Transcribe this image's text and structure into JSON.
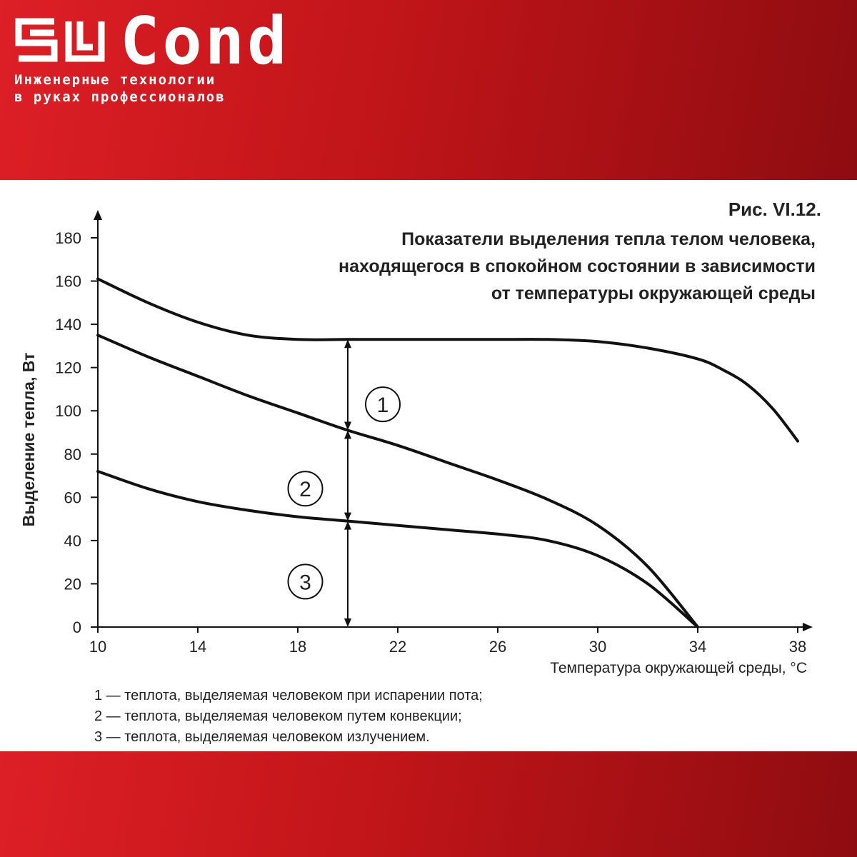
{
  "brand": {
    "name": "Cond",
    "mark": "el",
    "slogan_line1": "Инженерные технологии",
    "slogan_line2": "в руках профессионалов"
  },
  "figure": {
    "label": "Рис. VI.12.",
    "title_line1": "Показатели выделения тепла телом человека,",
    "title_line2": "находящегося в спокойном состоянии в зависимости",
    "title_line3": "от температуры окружающей среды"
  },
  "legend": [
    "1 — теплота, выделяемая человеком  при испарении пота;",
    "2 — теплота, выделяемая человеком  путем  конвекции;",
    "3 — теплота, выделяемая человеком  излучением."
  ],
  "colors": {
    "band": "#c01519",
    "ink": "#111111"
  },
  "chart_data": {
    "type": "line",
    "title": "",
    "xlabel": "Температура окружающей среды, °С",
    "ylabel": "Выделение тепла, Вт",
    "xlim": [
      10,
      38
    ],
    "ylim": [
      0,
      180
    ],
    "x_ticks": [
      "10",
      "14",
      "18",
      "22",
      "26",
      "30",
      "34",
      "38"
    ],
    "y_ticks": [
      "0",
      "20",
      "40",
      "60",
      "80",
      "100",
      "120",
      "140",
      "160",
      "180"
    ],
    "grid": false,
    "legend": "below",
    "series": [
      {
        "x": [
          10,
          12,
          14,
          16,
          18,
          20,
          22,
          24,
          26,
          28,
          30,
          32,
          34,
          35,
          36,
          37,
          38
        ],
        "values": [
          161,
          150,
          141,
          135,
          133,
          133,
          133,
          133,
          133,
          133,
          132,
          129,
          124,
          119,
          112,
          101,
          86
        ]
      },
      {
        "x": [
          10,
          12,
          14,
          16,
          18,
          20,
          22,
          24,
          26,
          28,
          30,
          32,
          34
        ],
        "values": [
          135,
          125,
          116,
          107,
          99,
          91,
          84,
          76,
          68,
          59,
          47,
          28,
          0
        ]
      },
      {
        "x": [
          10,
          12,
          14,
          16,
          18,
          20,
          22,
          24,
          26,
          28,
          30,
          32,
          34
        ],
        "values": [
          72,
          64,
          58,
          54,
          51,
          49,
          47,
          45,
          43,
          40,
          33,
          20,
          0
        ]
      }
    ],
    "annotations": [
      {
        "text": "1",
        "x": 21.4,
        "y": 103,
        "from": 91,
        "to": 133
      },
      {
        "text": "2",
        "x": 18.3,
        "y": 64,
        "from": 49,
        "to": 91
      },
      {
        "text": "3",
        "x": 18.3,
        "y": 21,
        "from": 0,
        "to": 49
      }
    ],
    "arrow_x": 20
  }
}
